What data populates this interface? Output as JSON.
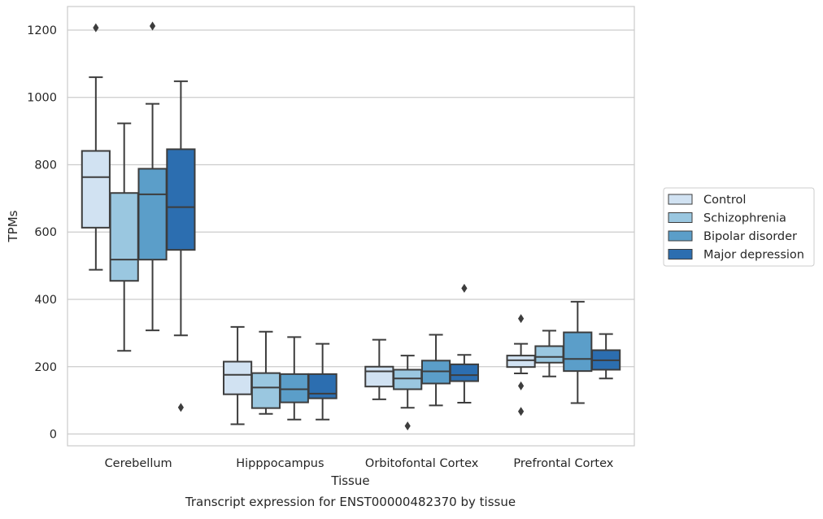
{
  "chart_data": {
    "type": "box",
    "xlabel": "Tissue",
    "ylabel": "TPMs",
    "caption": "Transcript expression for ENST00000482370 by tissue",
    "ylim": [
      -35,
      1270
    ],
    "yticks": [
      0,
      200,
      400,
      600,
      800,
      1000,
      1200
    ],
    "grid": "horizontal",
    "legend_position": "right",
    "categories": [
      "Cerebellum",
      "Hipppocampus",
      "Orbitofontal Cortex",
      "Prefrontal Cortex"
    ],
    "series": [
      {
        "name": "Control",
        "color": "#d1e2f2",
        "boxes": [
          {
            "whisker_low": 488,
            "q1": 613,
            "median": 763,
            "q3": 841,
            "whisker_high": 1060,
            "outliers": [
              1207
            ]
          },
          {
            "whisker_low": 29,
            "q1": 118,
            "median": 176,
            "q3": 215,
            "whisker_high": 318,
            "outliers": []
          },
          {
            "whisker_low": 103,
            "q1": 141,
            "median": 186,
            "q3": 200,
            "whisker_high": 280,
            "outliers": []
          },
          {
            "whisker_low": 180,
            "q1": 199,
            "median": 219,
            "q3": 233,
            "whisker_high": 268,
            "outliers": [
              343,
              143,
              67
            ]
          }
        ]
      },
      {
        "name": "Schizophrenia",
        "color": "#9ac7e0",
        "boxes": [
          {
            "whisker_low": 247,
            "q1": 455,
            "median": 518,
            "q3": 716,
            "whisker_high": 923,
            "outliers": []
          },
          {
            "whisker_low": 60,
            "q1": 77,
            "median": 138,
            "q3": 181,
            "whisker_high": 304,
            "outliers": []
          },
          {
            "whisker_low": 78,
            "q1": 133,
            "median": 165,
            "q3": 191,
            "whisker_high": 233,
            "outliers": [
              24
            ]
          },
          {
            "whisker_low": 171,
            "q1": 212,
            "median": 229,
            "q3": 261,
            "whisker_high": 307,
            "outliers": []
          }
        ]
      },
      {
        "name": "Bipolar disorder",
        "color": "#5b9ec9",
        "boxes": [
          {
            "whisker_low": 308,
            "q1": 518,
            "median": 712,
            "q3": 788,
            "whisker_high": 981,
            "outliers": [
              1212
            ]
          },
          {
            "whisker_low": 43,
            "q1": 94,
            "median": 133,
            "q3": 178,
            "whisker_high": 288,
            "outliers": []
          },
          {
            "whisker_low": 85,
            "q1": 150,
            "median": 186,
            "q3": 218,
            "whisker_high": 295,
            "outliers": []
          },
          {
            "whisker_low": 92,
            "q1": 187,
            "median": 223,
            "q3": 302,
            "whisker_high": 393,
            "outliers": []
          }
        ]
      },
      {
        "name": "Major depression",
        "color": "#2c6eb0",
        "boxes": [
          {
            "whisker_low": 293,
            "q1": 547,
            "median": 674,
            "q3": 846,
            "whisker_high": 1048,
            "outliers": [
              79
            ]
          },
          {
            "whisker_low": 43,
            "q1": 106,
            "median": 120,
            "q3": 178,
            "whisker_high": 268,
            "outliers": []
          },
          {
            "whisker_low": 93,
            "q1": 157,
            "median": 175,
            "q3": 207,
            "whisker_high": 235,
            "outliers": [
              433
            ]
          },
          {
            "whisker_low": 165,
            "q1": 191,
            "median": 219,
            "q3": 249,
            "whisker_high": 297,
            "outliers": []
          }
        ]
      }
    ]
  }
}
